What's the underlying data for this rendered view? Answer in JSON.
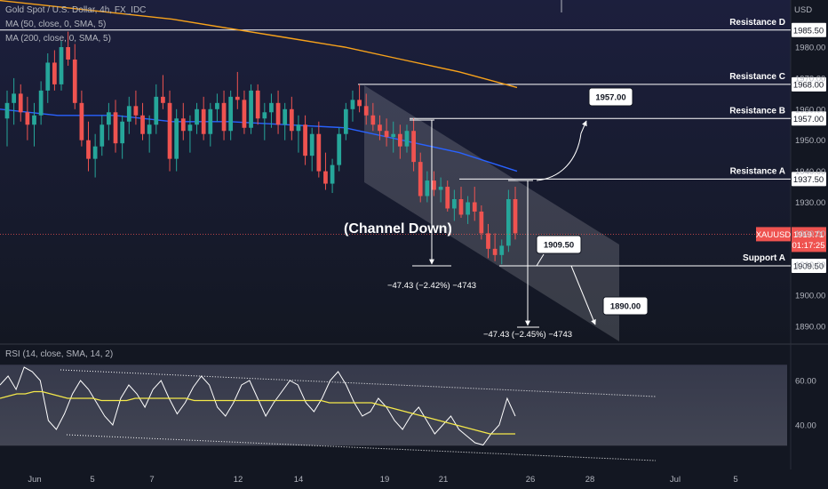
{
  "header": {
    "symbol_line": "Gold Spot / U.S. Dollar, 4h, FX_IDC",
    "ma50": "MA (50, close, 0, SMA, 5)",
    "ma200": "MA (200, close, 0, SMA, 5)",
    "rsi": "RSI (14, close, SMA, 14, 2)",
    "currency": "USD"
  },
  "colors": {
    "background": "#131722",
    "bull": "#26a69a",
    "bear": "#ef5350",
    "ma50": "#2962ff",
    "ma200": "#f7a21b",
    "rsi_line": "#ffffff",
    "rsi_ma": "#f5e94a",
    "price_tag": "#ef5350"
  },
  "annotation": {
    "channel_label": "(Channel Down)",
    "measure_1": "−47.43 (−2.42%) −4743",
    "measure_2": "−47.43 (−2.45%) −4743",
    "target_up": "1957.00",
    "target_mid": "1909.50",
    "target_down": "1890.00"
  },
  "levels": [
    {
      "name": "Resistance D",
      "value": "1985.50"
    },
    {
      "name": "Resistance C",
      "value": "1968.00"
    },
    {
      "name": "Resistance B",
      "value": "1957.00"
    },
    {
      "name": "Resistance A",
      "value": "1937.50"
    },
    {
      "name": "Support A",
      "value": "1909.50"
    }
  ],
  "price_tag": {
    "symbol": "XAUUSD",
    "price": "1919.71",
    "countdown": "01:17:25"
  },
  "chart_data": [
    {
      "type": "candlestick",
      "title": "Gold Spot / U.S. Dollar, 4h, FX_IDC",
      "x_labels": [
        "Jun",
        "5",
        "7",
        "12",
        "14",
        "19",
        "21",
        "26",
        "28",
        "Jul",
        "5"
      ],
      "y_ticks": [
        1890,
        1900,
        1910,
        1920,
        1930,
        1940,
        1950,
        1960,
        1970,
        1980
      ],
      "ylim": [
        1886,
        1994
      ],
      "last_price": 1919.71,
      "ma200": [
        1995,
        1993,
        1991,
        1989,
        1986,
        1983,
        1980,
        1976,
        1972,
        1967
      ],
      "ma50": [
        1960,
        1958,
        1958,
        1956,
        1956,
        1955,
        1954,
        1950,
        1946,
        1940
      ],
      "ohlc": [
        [
          1957,
          1966,
          1948,
          1962
        ],
        [
          1962,
          1970,
          1955,
          1965
        ],
        [
          1965,
          1968,
          1956,
          1959
        ],
        [
          1959,
          1964,
          1950,
          1955
        ],
        [
          1955,
          1962,
          1948,
          1958
        ],
        [
          1958,
          1969,
          1955,
          1966
        ],
        [
          1966,
          1978,
          1962,
          1975
        ],
        [
          1975,
          1979,
          1966,
          1968
        ],
        [
          1968,
          1982,
          1966,
          1980
        ],
        [
          1980,
          1985,
          1974,
          1976
        ],
        [
          1976,
          1981,
          1960,
          1962
        ],
        [
          1962,
          1966,
          1948,
          1950
        ],
        [
          1950,
          1956,
          1940,
          1944
        ],
        [
          1944,
          1952,
          1938,
          1948
        ],
        [
          1948,
          1958,
          1945,
          1955
        ],
        [
          1955,
          1962,
          1950,
          1959
        ],
        [
          1959,
          1963,
          1946,
          1949
        ],
        [
          1949,
          1958,
          1944,
          1956
        ],
        [
          1956,
          1964,
          1952,
          1961
        ],
        [
          1961,
          1966,
          1955,
          1958
        ],
        [
          1958,
          1962,
          1950,
          1952
        ],
        [
          1952,
          1958,
          1946,
          1955
        ],
        [
          1955,
          1968,
          1952,
          1964
        ],
        [
          1964,
          1971,
          1960,
          1962
        ],
        [
          1962,
          1966,
          1940,
          1944
        ],
        [
          1944,
          1960,
          1940,
          1957
        ],
        [
          1957,
          1962,
          1950,
          1953
        ],
        [
          1953,
          1958,
          1946,
          1955
        ],
        [
          1955,
          1962,
          1952,
          1960
        ],
        [
          1960,
          1964,
          1950,
          1952
        ],
        [
          1952,
          1962,
          1948,
          1960
        ],
        [
          1960,
          1965,
          1956,
          1962
        ],
        [
          1962,
          1966,
          1950,
          1953
        ],
        [
          1953,
          1966,
          1950,
          1964
        ],
        [
          1964,
          1972,
          1960,
          1963
        ],
        [
          1963,
          1966,
          1952,
          1954
        ],
        [
          1954,
          1968,
          1952,
          1966
        ],
        [
          1966,
          1968,
          1955,
          1957
        ],
        [
          1957,
          1962,
          1950,
          1959
        ],
        [
          1959,
          1965,
          1954,
          1962
        ],
        [
          1962,
          1966,
          1952,
          1955
        ],
        [
          1955,
          1962,
          1950,
          1960
        ],
        [
          1960,
          1964,
          1950,
          1953
        ],
        [
          1953,
          1958,
          1946,
          1955
        ],
        [
          1955,
          1958,
          1942,
          1945
        ],
        [
          1945,
          1954,
          1940,
          1952
        ],
        [
          1952,
          1956,
          1938,
          1940
        ],
        [
          1940,
          1946,
          1934,
          1936
        ],
        [
          1936,
          1944,
          1933,
          1942
        ],
        [
          1942,
          1954,
          1940,
          1952
        ],
        [
          1952,
          1962,
          1950,
          1960
        ],
        [
          1960,
          1966,
          1956,
          1963
        ],
        [
          1963,
          1968,
          1959,
          1961
        ],
        [
          1961,
          1965,
          1955,
          1958
        ],
        [
          1958,
          1962,
          1953,
          1955
        ],
        [
          1955,
          1958,
          1950,
          1953
        ],
        [
          1953,
          1957,
          1948,
          1951
        ],
        [
          1951,
          1956,
          1946,
          1952
        ],
        [
          1952,
          1955,
          1944,
          1948
        ],
        [
          1948,
          1955,
          1946,
          1953
        ],
        [
          1953,
          1957,
          1940,
          1943
        ],
        [
          1943,
          1946,
          1930,
          1932
        ],
        [
          1932,
          1940,
          1930,
          1937
        ],
        [
          1937,
          1940,
          1932,
          1934
        ],
        [
          1934,
          1938,
          1930,
          1935
        ],
        [
          1935,
          1937,
          1927,
          1928
        ],
        [
          1928,
          1934,
          1924,
          1931
        ],
        [
          1931,
          1935,
          1925,
          1926
        ],
        [
          1926,
          1932,
          1923,
          1930
        ],
        [
          1930,
          1935,
          1924,
          1927
        ],
        [
          1927,
          1929,
          1918,
          1920
        ],
        [
          1920,
          1923,
          1912,
          1915
        ],
        [
          1915,
          1920,
          1911,
          1913
        ],
        [
          1913,
          1918,
          1910,
          1916
        ],
        [
          1916,
          1934,
          1914,
          1931
        ],
        [
          1931,
          1935,
          1918,
          1920
        ]
      ]
    },
    {
      "type": "line",
      "title": "RSI (14, close, SMA, 14, 2)",
      "y_ticks": [
        40,
        60
      ],
      "ylim": [
        22,
        72
      ],
      "band": [
        30.7,
        67.1
      ],
      "rsi": [
        58,
        62,
        56,
        66,
        64,
        60,
        42,
        38,
        45,
        54,
        60,
        56,
        50,
        44,
        40,
        52,
        58,
        54,
        48,
        56,
        60,
        52,
        45,
        50,
        57,
        62,
        58,
        48,
        44,
        50,
        58,
        60,
        52,
        44,
        50,
        55,
        60,
        58,
        50,
        46,
        52,
        60,
        64,
        58,
        50,
        44,
        46,
        52,
        48,
        42,
        38,
        44,
        48,
        42,
        36,
        40,
        44,
        38,
        35,
        32,
        31,
        36,
        40,
        52,
        44
      ],
      "rsi_ma": [
        52,
        53,
        54,
        54,
        55,
        55,
        54,
        53,
        52,
        52,
        52,
        52,
        51,
        51,
        51,
        51,
        52,
        52,
        52,
        52,
        52,
        52,
        52,
        51,
        51,
        51,
        51,
        51,
        51,
        51,
        51,
        51,
        51,
        51,
        51,
        51,
        51,
        51,
        51,
        50,
        50,
        50,
        50,
        50,
        50,
        49,
        48,
        47,
        46,
        45,
        44,
        43,
        42,
        41,
        40,
        39,
        38,
        37,
        36,
        36,
        36,
        36
      ]
    }
  ]
}
